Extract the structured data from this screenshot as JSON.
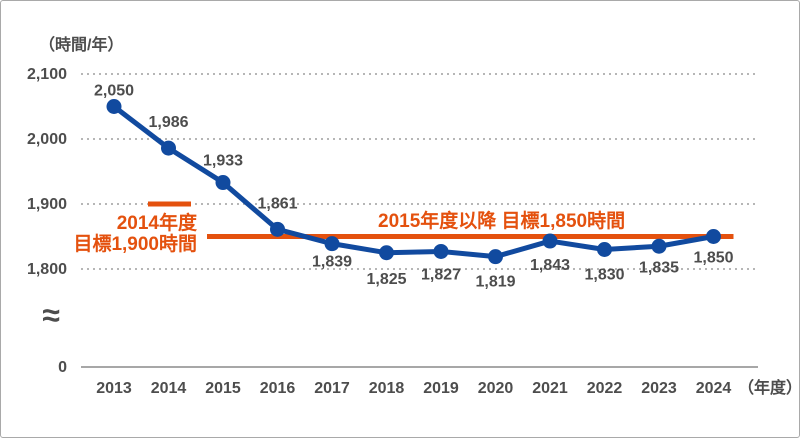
{
  "chart_data": {
    "type": "line",
    "unit_label": "（時間/年）",
    "x_suffix": "（年度）",
    "categories": [
      "2013",
      "2014",
      "2015",
      "2016",
      "2017",
      "2018",
      "2019",
      "2020",
      "2021",
      "2022",
      "2023",
      "2024"
    ],
    "values": [
      2050,
      1986,
      1933,
      1861,
      1839,
      1825,
      1827,
      1819,
      1843,
      1830,
      1835,
      1850
    ],
    "point_labels": [
      "2,050",
      "1,986",
      "1,933",
      "1,861",
      "1,839",
      "1,825",
      "1,827",
      "1,819",
      "1,843",
      "1,830",
      "1,835",
      "1,850"
    ],
    "y_ticks": [
      2100,
      2000,
      1900,
      1800,
      0
    ],
    "y_tick_labels": [
      "2,100",
      "2,000",
      "1,900",
      "1,800",
      "0"
    ],
    "ylim_display": [
      1800,
      2100
    ],
    "grid": "horizontal-dotted",
    "axis_break_symbol": "≈",
    "legend": "none",
    "annotations": {
      "target_2014": {
        "line1": "2014年度",
        "line2": "目標1,900時間",
        "value": 1900,
        "applies_to_year": "2014"
      },
      "target_2015": {
        "text": "2015年度以降 目標1,850時間",
        "value": 1850,
        "from_year": "2015",
        "to_year": "2024"
      }
    },
    "colors": {
      "series_line": "#114a9f",
      "target_line": "#e4510e",
      "label_text": "#4d4d4d"
    }
  }
}
